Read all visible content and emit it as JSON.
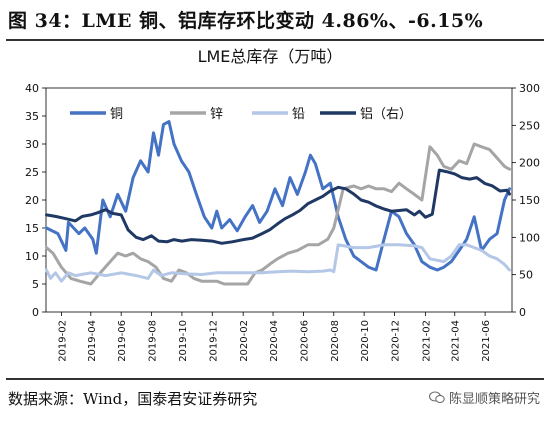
{
  "header": {
    "title": "图 34：LME 铜、铝库存环比变动 4.86%、-6.15%"
  },
  "footer": {
    "source": "数据来源：Wind，国泰君安证券研究",
    "watermark": "陈显顺策略研究"
  },
  "colors": {
    "copper": "#4472C4",
    "zinc": "#A5A5A5",
    "lead": "#B4C7E7",
    "aluminum": "#1F3864"
  },
  "chart_data": {
    "type": "line",
    "title": "LME总库存（万吨）",
    "x_tick_labels": [
      "2019-02",
      "2019-04",
      "2019-06",
      "2019-08",
      "2019-10",
      "2019-12",
      "2020-02",
      "2020-04",
      "2020-06",
      "2020-08",
      "2020-10",
      "2020-12",
      "2021-02",
      "2021-04",
      "2021-06"
    ],
    "x_range": [
      "2019-01-01",
      "2021-07-25"
    ],
    "ylim_left": [
      0,
      40
    ],
    "yticks_left": [
      0,
      5,
      10,
      15,
      20,
      25,
      30,
      35,
      40
    ],
    "ylim_right": [
      0,
      300
    ],
    "yticks_right": [
      0,
      50,
      100,
      150,
      200,
      250,
      300
    ],
    "grid": false,
    "legend": "top-left",
    "series": [
      {
        "name": "铜",
        "axis": "left",
        "color": "#4472C4",
        "width": 3,
        "x": [
          "2019-01-02",
          "2019-01-25",
          "2019-02-10",
          "2019-02-15",
          "2019-03-08",
          "2019-03-20",
          "2019-04-05",
          "2019-04-12",
          "2019-04-25",
          "2019-05-10",
          "2019-05-25",
          "2019-06-10",
          "2019-06-25",
          "2019-07-10",
          "2019-07-25",
          "2019-08-05",
          "2019-08-15",
          "2019-08-25",
          "2019-09-05",
          "2019-09-15",
          "2019-09-30",
          "2019-10-15",
          "2019-10-30",
          "2019-11-15",
          "2019-11-30",
          "2019-12-10",
          "2019-12-20",
          "2020-01-05",
          "2020-01-20",
          "2020-02-05",
          "2020-02-20",
          "2020-03-05",
          "2020-03-20",
          "2020-04-05",
          "2020-04-20",
          "2020-05-05",
          "2020-05-20",
          "2020-06-05",
          "2020-06-15",
          "2020-06-25",
          "2020-07-10",
          "2020-07-25",
          "2020-08-10",
          "2020-08-25",
          "2020-09-10",
          "2020-09-25",
          "2020-10-10",
          "2020-10-25",
          "2020-11-10",
          "2020-11-25",
          "2020-12-10",
          "2020-12-25",
          "2021-01-10",
          "2021-01-25",
          "2021-02-10",
          "2021-02-25",
          "2021-03-10",
          "2021-03-25",
          "2021-04-10",
          "2021-04-25",
          "2021-05-10",
          "2021-05-25",
          "2021-06-10",
          "2021-06-25",
          "2021-07-10",
          "2021-07-20"
        ],
        "values": [
          15,
          14,
          11,
          16,
          14,
          15,
          13,
          10.5,
          20,
          17,
          21,
          18,
          24,
          27,
          25,
          32,
          28,
          33.5,
          34,
          30,
          27,
          25,
          21,
          17,
          15,
          18,
          15,
          16.5,
          14.5,
          17,
          19,
          16,
          18,
          22,
          19,
          24,
          21,
          25,
          28,
          26.5,
          22,
          23,
          17,
          13,
          10,
          9,
          8,
          7.5,
          13,
          18,
          17,
          14,
          12,
          9,
          8,
          7.5,
          8,
          9,
          11,
          13,
          17,
          11,
          13,
          14,
          20,
          22
        ]
      },
      {
        "name": "锌",
        "axis": "left",
        "color": "#A5A5A5",
        "width": 3,
        "x": [
          "2019-01-02",
          "2019-01-15",
          "2019-02-01",
          "2019-02-20",
          "2019-03-10",
          "2019-04-01",
          "2019-04-20",
          "2019-05-10",
          "2019-05-25",
          "2019-06-10",
          "2019-06-25",
          "2019-07-10",
          "2019-07-25",
          "2019-08-10",
          "2019-08-25",
          "2019-09-10",
          "2019-09-25",
          "2019-10-10",
          "2019-10-25",
          "2019-11-10",
          "2019-11-25",
          "2019-12-10",
          "2019-12-25",
          "2020-01-10",
          "2020-01-25",
          "2020-02-10",
          "2020-02-25",
          "2020-03-10",
          "2020-03-25",
          "2020-04-10",
          "2020-05-01",
          "2020-05-20",
          "2020-06-10",
          "2020-07-01",
          "2020-07-20",
          "2020-08-01",
          "2020-08-20",
          "2020-09-10",
          "2020-09-25",
          "2020-10-10",
          "2020-10-25",
          "2020-11-10",
          "2020-11-25",
          "2020-12-10",
          "2020-12-25",
          "2021-01-10",
          "2021-01-25",
          "2021-02-10",
          "2021-02-25",
          "2021-03-10",
          "2021-03-25",
          "2021-04-10",
          "2021-04-25",
          "2021-05-10",
          "2021-05-25",
          "2021-06-10",
          "2021-06-25",
          "2021-07-10",
          "2021-07-20"
        ],
        "values": [
          11.5,
          10.5,
          8,
          6,
          5.5,
          5,
          7,
          9,
          10.5,
          10,
          10.5,
          9.5,
          9,
          8,
          6,
          5.5,
          7.5,
          7,
          6,
          5.5,
          5.5,
          5.5,
          5,
          5,
          5,
          5,
          7,
          7.5,
          8.5,
          9.5,
          10.5,
          11,
          12,
          12,
          13,
          15,
          22,
          22.5,
          22,
          22.5,
          22,
          22,
          21.5,
          23,
          22,
          21,
          20,
          29.5,
          28,
          26,
          25.5,
          27,
          26.5,
          30,
          29.5,
          29,
          27.5,
          26,
          25.5
        ]
      },
      {
        "name": "铅",
        "axis": "left",
        "color": "#B4C7E7",
        "width": 3,
        "x": [
          "2019-01-02",
          "2019-01-10",
          "2019-01-20",
          "2019-02-01",
          "2019-02-15",
          "2019-03-01",
          "2019-04-01",
          "2019-05-01",
          "2019-06-01",
          "2019-07-01",
          "2019-07-25",
          "2019-08-05",
          "2019-08-20",
          "2019-09-10",
          "2019-10-10",
          "2019-11-10",
          "2019-12-10",
          "2020-01-10",
          "2020-02-10",
          "2020-03-10",
          "2020-04-10",
          "2020-05-10",
          "2020-06-10",
          "2020-07-10",
          "2020-07-25",
          "2020-08-01",
          "2020-08-10",
          "2020-09-10",
          "2020-10-10",
          "2020-11-10",
          "2020-12-10",
          "2021-01-10",
          "2021-01-25",
          "2021-02-10",
          "2021-03-10",
          "2021-03-25",
          "2021-04-10",
          "2021-04-25",
          "2021-05-10",
          "2021-05-25",
          "2021-06-10",
          "2021-06-25",
          "2021-07-10",
          "2021-07-20"
        ],
        "values": [
          7.5,
          6,
          7,
          5.5,
          7,
          6.5,
          7,
          6.5,
          7,
          6.5,
          6,
          7.5,
          6.5,
          7,
          6.8,
          6.7,
          7,
          7,
          7,
          7,
          7.2,
          7.3,
          7.2,
          7.3,
          7.5,
          7.2,
          12,
          11.5,
          11.5,
          12,
          12,
          11.8,
          11.5,
          9.5,
          9,
          10,
          12,
          12,
          11.5,
          11,
          10,
          9.5,
          8.5,
          7.5
        ]
      },
      {
        "name": "铝（右）",
        "axis": "right",
        "color": "#1F3864",
        "width": 3,
        "x": [
          "2019-01-02",
          "2019-01-20",
          "2019-02-10",
          "2019-03-01",
          "2019-03-15",
          "2019-04-01",
          "2019-04-15",
          "2019-05-01",
          "2019-05-15",
          "2019-06-01",
          "2019-06-15",
          "2019-07-01",
          "2019-07-15",
          "2019-08-01",
          "2019-08-15",
          "2019-09-01",
          "2019-09-15",
          "2019-10-01",
          "2019-10-20",
          "2019-11-10",
          "2019-12-01",
          "2019-12-20",
          "2020-01-10",
          "2020-02-01",
          "2020-02-20",
          "2020-03-10",
          "2020-03-25",
          "2020-04-10",
          "2020-04-25",
          "2020-05-10",
          "2020-05-25",
          "2020-06-10",
          "2020-06-25",
          "2020-07-10",
          "2020-07-25",
          "2020-08-10",
          "2020-08-25",
          "2020-09-10",
          "2020-09-25",
          "2020-10-10",
          "2020-10-25",
          "2020-11-10",
          "2020-11-25",
          "2020-12-10",
          "2020-12-25",
          "2021-01-10",
          "2021-01-20",
          "2021-02-01",
          "2021-02-15",
          "2021-03-01",
          "2021-03-15",
          "2021-04-01",
          "2021-04-15",
          "2021-05-01",
          "2021-05-15",
          "2021-06-01",
          "2021-06-15",
          "2021-07-01",
          "2021-07-15",
          "2021-07-20"
        ],
        "values": [
          130,
          128,
          125,
          122,
          128,
          130,
          133,
          137,
          132,
          130,
          110,
          100,
          97,
          102,
          95,
          94,
          97,
          95,
          97,
          96,
          95,
          92,
          94,
          97,
          99,
          105,
          110,
          118,
          125,
          130,
          136,
          145,
          150,
          155,
          162,
          167,
          165,
          158,
          150,
          147,
          142,
          138,
          135,
          136,
          137,
          130,
          135,
          127,
          131,
          190,
          188,
          185,
          180,
          178,
          180,
          172,
          169,
          162,
          163,
          158
        ]
      }
    ]
  }
}
